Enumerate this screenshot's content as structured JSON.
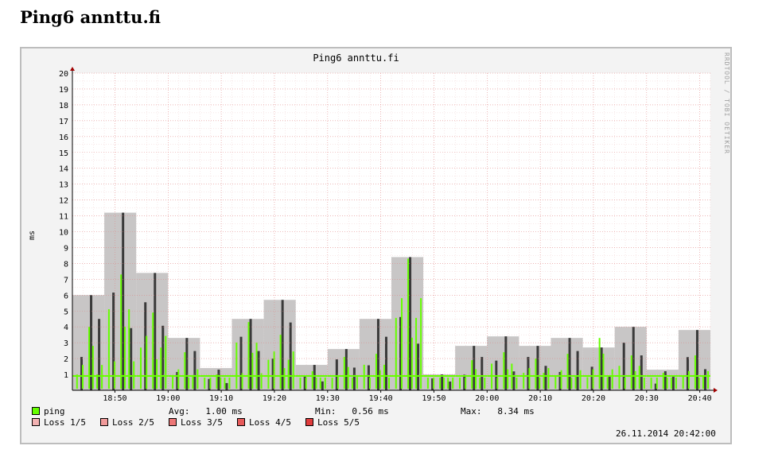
{
  "page": {
    "heading": "Ping6 annttu.fi"
  },
  "graph": {
    "title": "Ping6 annttu.fi",
    "watermark": "RRDTOOL / TOBI OETIKER",
    "timestamp": "26.11.2014 20:42:00"
  },
  "legend": {
    "ping": {
      "label": "ping",
      "color": "#66ff00"
    },
    "stats": {
      "avg": "Avg:   1.00 ms",
      "min": "Min:   0.56 ms",
      "max": "Max:   8.34 ms"
    },
    "loss": [
      {
        "label": "Loss 1/5",
        "color": "#f2b2b2"
      },
      {
        "label": "Loss 2/5",
        "color": "#f09a9a"
      },
      {
        "label": "Loss 3/5",
        "color": "#ec7676"
      },
      {
        "label": "Loss 4/5",
        "color": "#e65a5a"
      },
      {
        "label": "Loss 5/5",
        "color": "#e03c3c"
      }
    ]
  },
  "chart_data": {
    "type": "area",
    "title": "Ping6 annttu.fi",
    "ylabel": "ms",
    "ylim": [
      0,
      20
    ],
    "yticks": [
      1,
      2,
      3,
      4,
      5,
      6,
      7,
      8,
      9,
      10,
      11,
      12,
      13,
      14,
      15,
      16,
      17,
      18,
      19,
      20
    ],
    "xlim": [
      "18:42",
      "20:42"
    ],
    "xticks": [
      "18:50",
      "19:00",
      "19:10",
      "19:20",
      "19:30",
      "19:40",
      "19:50",
      "20:00",
      "20:10",
      "20:20",
      "20:30",
      "20:40"
    ],
    "grid": true,
    "colors": {
      "envelope": "#c8c6c6",
      "stddev": "#3a3a3a",
      "median": "#66ff00"
    },
    "envelope_blocks": [
      {
        "start": "18:42",
        "end": "18:48",
        "max": 6.0,
        "stddev_hi": 6.0,
        "median_peak": 4.0
      },
      {
        "start": "18:48",
        "end": "18:54",
        "max": 11.2,
        "stddev_hi": 11.2,
        "median_peak": 7.3
      },
      {
        "start": "18:54",
        "end": "19:00",
        "max": 7.4,
        "stddev_hi": 7.4,
        "median_peak": 4.9
      },
      {
        "start": "19:00",
        "end": "19:06",
        "max": 3.3,
        "stddev_hi": 3.3,
        "median_peak": 2.4
      },
      {
        "start": "19:06",
        "end": "19:12",
        "max": 1.4,
        "stddev_hi": 1.3,
        "median_peak": 1.0
      },
      {
        "start": "19:12",
        "end": "19:18",
        "max": 4.5,
        "stddev_hi": 4.5,
        "median_peak": 4.3
      },
      {
        "start": "19:18",
        "end": "19:24",
        "max": 5.7,
        "stddev_hi": 5.7,
        "median_peak": 3.5
      },
      {
        "start": "19:24",
        "end": "19:30",
        "max": 1.6,
        "stddev_hi": 1.6,
        "median_peak": 1.2
      },
      {
        "start": "19:30",
        "end": "19:36",
        "max": 2.6,
        "stddev_hi": 2.6,
        "median_peak": 2.1
      },
      {
        "start": "19:36",
        "end": "19:42",
        "max": 4.5,
        "stddev_hi": 4.5,
        "median_peak": 2.3
      },
      {
        "start": "19:42",
        "end": "19:48",
        "max": 8.4,
        "stddev_hi": 8.4,
        "median_peak": 8.3
      },
      {
        "start": "19:48",
        "end": "19:54",
        "max": 1.0,
        "stddev_hi": 1.0,
        "median_peak": 0.8
      },
      {
        "start": "19:54",
        "end": "20:00",
        "max": 2.8,
        "stddev_hi": 2.8,
        "median_peak": 1.9
      },
      {
        "start": "20:00",
        "end": "20:06",
        "max": 3.4,
        "stddev_hi": 3.4,
        "median_peak": 2.4
      },
      {
        "start": "20:06",
        "end": "20:12",
        "max": 2.8,
        "stddev_hi": 2.8,
        "median_peak": 2.0
      },
      {
        "start": "20:12",
        "end": "20:18",
        "max": 3.3,
        "stddev_hi": 3.3,
        "median_peak": 2.3
      },
      {
        "start": "20:18",
        "end": "20:24",
        "max": 2.7,
        "stddev_hi": 2.7,
        "median_peak": 3.3
      },
      {
        "start": "20:24",
        "end": "20:30",
        "max": 4.0,
        "stddev_hi": 4.0,
        "median_peak": 2.2
      },
      {
        "start": "20:30",
        "end": "20:36",
        "max": 1.3,
        "stddev_hi": 1.2,
        "median_peak": 1.1
      },
      {
        "start": "20:36",
        "end": "20:42",
        "max": 3.8,
        "stddev_hi": 3.8,
        "median_peak": 2.2
      }
    ]
  }
}
